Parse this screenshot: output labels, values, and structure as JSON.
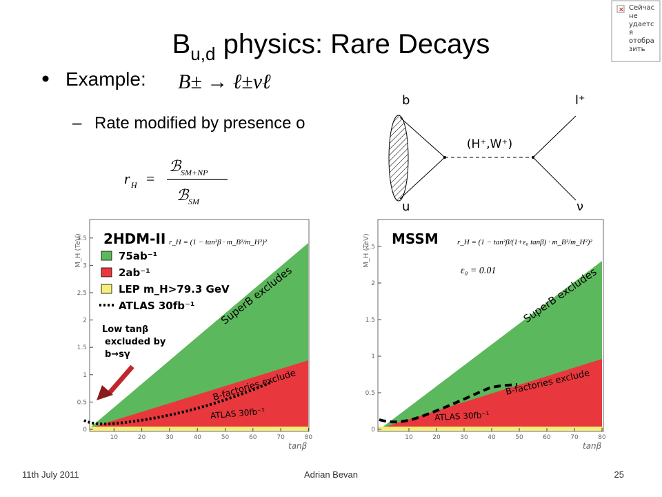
{
  "title": {
    "base": "B",
    "subscript": "u,d",
    "text": " physics: Rare Decays"
  },
  "bullet": {
    "text": "Example:",
    "formula": "B± → ℓ±νℓ"
  },
  "sub_bullet": "Rate modified by presence o",
  "formula": {
    "lhs": "r",
    "lhs_sub": "H",
    "eq": "=",
    "numerator": "ℬ",
    "numerator_sub": "SM+NP",
    "denominator": "ℬ",
    "denominator_sub": "SM"
  },
  "diagram": {
    "quark_top": "b",
    "quark_bottom": "u",
    "lepton": "l⁺",
    "neutrino": "ν",
    "boson": "(H⁺,W⁺)"
  },
  "plots": [
    {
      "model": "2HDM-II",
      "formula": "r_H = (1 − tan²β · m_B²/m_H²)²",
      "legend": [
        "75ab⁻¹",
        "2ab⁻¹",
        "LEP m_H>79.3 GeV",
        "ATLAS 30fb⁻¹"
      ],
      "annotation": [
        "Low tanβ",
        "excluded by",
        "b→sγ"
      ],
      "regions": [
        "SuperB excludes",
        "B-factories exclude",
        "ATLAS 30fb⁻¹"
      ],
      "y_label": "M_H (TeV)",
      "x_label": "tanβ",
      "yticks": [
        "0",
        "0.5",
        "1",
        "1.5",
        "2",
        "2.5",
        "3",
        "3.5"
      ],
      "xticks": [
        "10",
        "20",
        "30",
        "40",
        "50",
        "60",
        "70",
        "80"
      ]
    },
    {
      "model": "MSSM",
      "formula": "r_H = (1 − tan²β/(1+ε₀ tanβ) · m_B²/m_H²)²",
      "parameter": "ε₀ = 0.01",
      "regions": [
        "SuperB excludes",
        "B-factories exclude",
        "ATLAS 30fb⁻¹"
      ],
      "y_label": "M_H (TeV)",
      "x_label": "tanβ",
      "yticks": [
        "0",
        "0.5",
        "1",
        "1.5",
        "2",
        "2.5"
      ],
      "xticks": [
        "10",
        "20",
        "30",
        "40",
        "50",
        "60",
        "70",
        "80"
      ]
    }
  ],
  "footer": {
    "date": "11th July 2011",
    "author": "Adrian Bevan",
    "page": "25"
  },
  "missing_image": [
    "Сейчас",
    "не",
    "удаетс",
    "я",
    "отобра",
    "зить"
  ]
}
